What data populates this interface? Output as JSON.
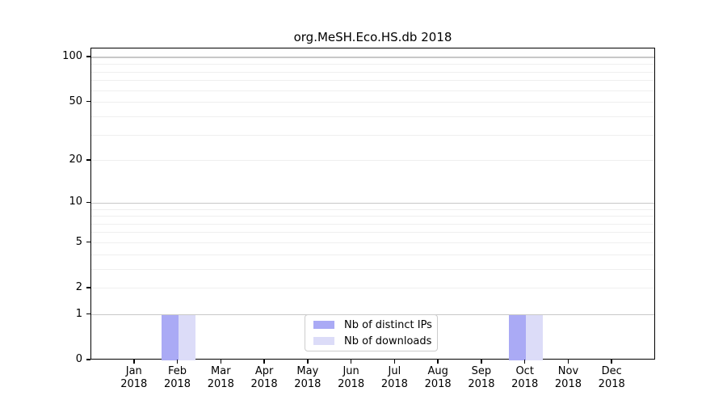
{
  "chart_data": {
    "type": "bar",
    "title": "org.MeSH.Eco.HS.db 2018",
    "x_tick_labels": [
      [
        "Jan",
        "2018"
      ],
      [
        "Feb",
        "2018"
      ],
      [
        "Mar",
        "2018"
      ],
      [
        "Apr",
        "2018"
      ],
      [
        "May",
        "2018"
      ],
      [
        "Jun",
        "2018"
      ],
      [
        "Jul",
        "2018"
      ],
      [
        "Aug",
        "2018"
      ],
      [
        "Sep",
        "2018"
      ],
      [
        "Oct",
        "2018"
      ],
      [
        "Nov",
        "2018"
      ],
      [
        "Dec",
        "2018"
      ]
    ],
    "series": [
      {
        "name": "Nb of distinct IPs",
        "color": "#aaaaf5",
        "values": [
          0,
          1,
          0,
          0,
          0,
          0,
          0,
          0,
          0,
          1,
          0,
          0
        ]
      },
      {
        "name": "Nb of downloads",
        "color": "#dcdcf8",
        "values": [
          0,
          1,
          0,
          0,
          0,
          0,
          0,
          0,
          0,
          1,
          0,
          0
        ]
      }
    ],
    "y_ticks": [
      0,
      1,
      2,
      5,
      10,
      20,
      50,
      100
    ],
    "y_scale": "log1p",
    "ylim": [
      0,
      115
    ],
    "xlabel": "",
    "ylabel": "",
    "grid": {
      "major_values": [
        1,
        10,
        100
      ],
      "minor_values": [
        2,
        3,
        4,
        5,
        6,
        7,
        8,
        9,
        20,
        30,
        40,
        50,
        60,
        70,
        80,
        90
      ],
      "major_color": "#c8c8c8",
      "minor_color": "#efefef"
    },
    "legend_position": "lower center",
    "colors": {
      "background": "#ffffff",
      "spine": "#000000",
      "text": "#000000"
    }
  }
}
